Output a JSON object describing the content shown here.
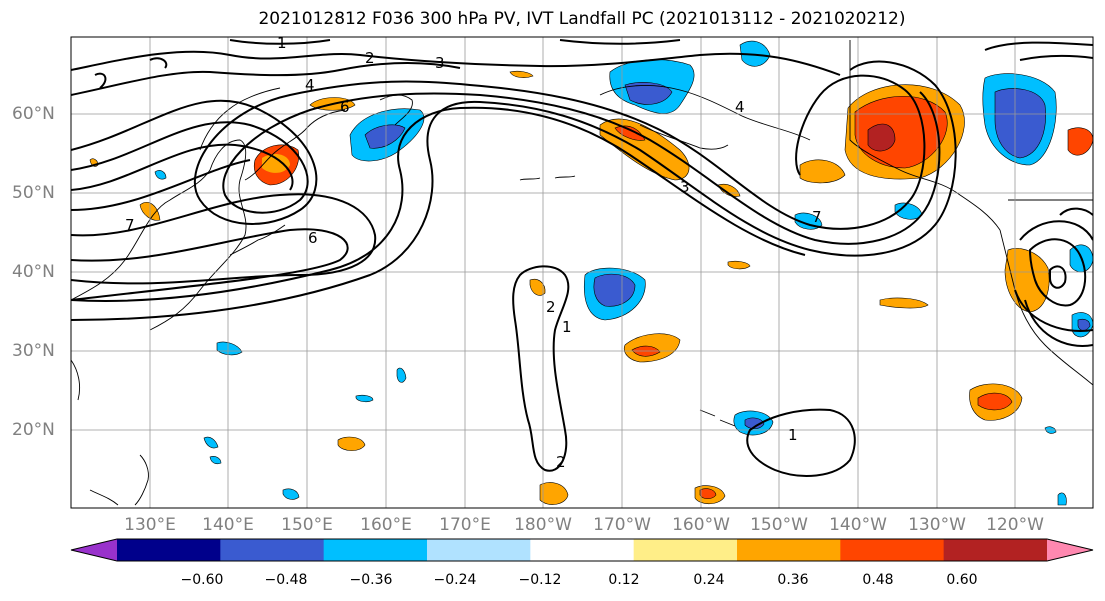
{
  "title": "2021012812 F036 300 hPa PV, IVT Landfall PC (2021013112 - 2021020212)",
  "lat_labels": [
    "60°N",
    "50°N",
    "40°N",
    "30°N",
    "20°N"
  ],
  "lon_labels": [
    "130°E",
    "140°E",
    "150°E",
    "160°E",
    "170°E",
    "180°W",
    "170°W",
    "160°W",
    "150°W",
    "140°W",
    "130°W",
    "120°W"
  ],
  "contour_labels": [
    "1",
    "2",
    "3",
    "4",
    "6",
    "7",
    "1",
    "2",
    "3",
    "4",
    "6",
    "7",
    "1",
    "2"
  ],
  "colorbar": {
    "ticks": [
      "−0.60",
      "−0.48",
      "−0.36",
      "−0.24",
      "−0.12",
      "0.12",
      "0.24",
      "0.36",
      "0.48",
      "0.60"
    ],
    "colors": [
      "#9932cc",
      "#00008b",
      "#3a5bd0",
      "#00bfff",
      "#b0e2ff",
      "#ffffff",
      "#ffee88",
      "#ffa500",
      "#ff4500",
      "#b22222",
      "#ff88b0"
    ]
  }
}
